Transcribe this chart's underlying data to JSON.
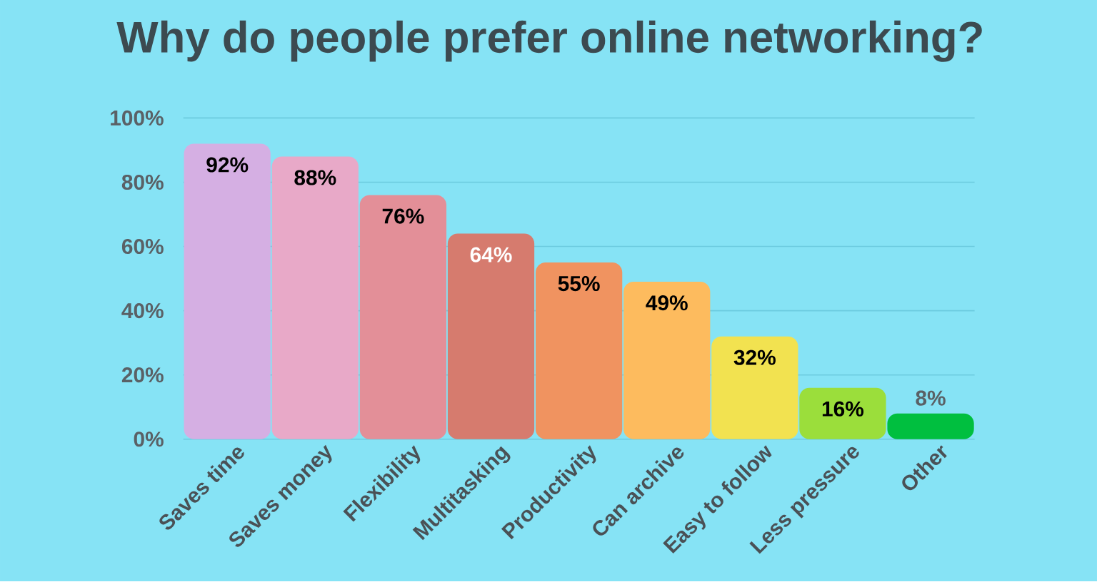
{
  "chart_data": {
    "type": "bar",
    "title": "Why do people prefer online networking?",
    "categories": [
      "Saves time",
      "Saves money",
      "Flexibility",
      "Multitasking",
      "Productivity",
      "Can archive",
      "Easy to follow",
      "Less pressure",
      "Other"
    ],
    "values": [
      92,
      88,
      76,
      64,
      55,
      49,
      32,
      16,
      8
    ],
    "value_labels": [
      "92%",
      "88%",
      "76%",
      "64%",
      "55%",
      "49%",
      "32%",
      "16%",
      "8%"
    ],
    "colors": [
      "#d5afe3",
      "#e8a9c8",
      "#e38f98",
      "#d67b6e",
      "#f09360",
      "#fdbb5e",
      "#f2e250",
      "#9bde3b",
      "#00bf3f"
    ],
    "ylim": [
      0,
      100
    ],
    "yticks": [
      {
        "value": 0,
        "label": "0%"
      },
      {
        "value": 20,
        "label": "20%"
      },
      {
        "value": 40,
        "label": "40%"
      },
      {
        "value": 60,
        "label": "60%"
      },
      {
        "value": 80,
        "label": "80%"
      },
      {
        "value": 100,
        "label": "100%"
      }
    ],
    "grid": "y"
  }
}
